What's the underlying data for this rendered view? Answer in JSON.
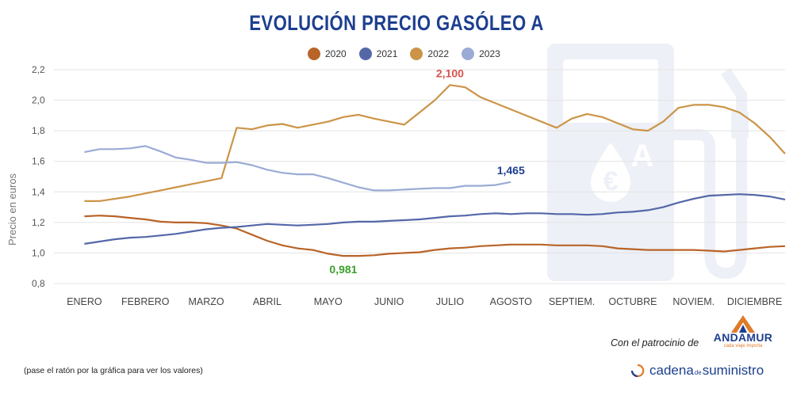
{
  "title": "EVOLUCIÓN PRECIO GASÓLEO A",
  "note": "(pase el ratón por la gráfica para ver los valores)",
  "sponsor": {
    "text": "Con el patrocinio de",
    "brand": "ANDAMUR",
    "tagline": "cada viaje importa"
  },
  "publisher": {
    "part1": "cadena",
    "part2": "de",
    "part3": "suministro"
  },
  "colors": {
    "2020": "#b86428",
    "2021": "#5468a8",
    "2022": "#cc9448",
    "2023": "#9babd5",
    "title": "#1d3f8f",
    "background_icon": "#edf0f6"
  },
  "chart_data": {
    "type": "line",
    "title": "EVOLUCIÓN PRECIO GASÓLEO A",
    "ylabel": "Precio en euros",
    "xlabel": "",
    "ylim": [
      0.8,
      2.2
    ],
    "y_ticks": [
      "0,8",
      "1,0",
      "1,2",
      "1,4",
      "1,6",
      "1,8",
      "2,0",
      "2,2"
    ],
    "x_ticks": [
      "ENERO",
      "FEBRERO",
      "MARZO",
      "ABRIL",
      "MAYO",
      "JUNIO",
      "JULIO",
      "AGOSTO",
      "SEPTIEM.",
      "OCTUBRE",
      "NOVIEM.",
      "DICIEMBRE"
    ],
    "grid": true,
    "legend": "top-center",
    "series": [
      {
        "name": "2020",
        "x": [
          0,
          0.25,
          0.5,
          0.75,
          1,
          1.25,
          1.5,
          1.75,
          2,
          2.25,
          2.5,
          2.75,
          3,
          3.25,
          3.5,
          3.75,
          4,
          4.25,
          4.5,
          4.75,
          5,
          5.25,
          5.5,
          5.75,
          6,
          6.25,
          6.5,
          6.75,
          7,
          7.25,
          7.5,
          7.75,
          8,
          8.25,
          8.5,
          8.75,
          9,
          9.25,
          9.5,
          9.75,
          10,
          10.25,
          10.5,
          10.75,
          11,
          11.25,
          11.5
        ],
        "values": [
          1.24,
          1.245,
          1.24,
          1.23,
          1.22,
          1.205,
          1.2,
          1.2,
          1.195,
          1.18,
          1.16,
          1.12,
          1.08,
          1.05,
          1.03,
          1.02,
          0.995,
          0.981,
          0.981,
          0.985,
          0.995,
          1.0,
          1.005,
          1.02,
          1.03,
          1.035,
          1.045,
          1.05,
          1.055,
          1.055,
          1.055,
          1.05,
          1.05,
          1.05,
          1.045,
          1.03,
          1.025,
          1.02,
          1.02,
          1.02,
          1.02,
          1.015,
          1.01,
          1.02,
          1.03,
          1.04,
          1.045
        ]
      },
      {
        "name": "2021",
        "x": [
          0,
          0.25,
          0.5,
          0.75,
          1,
          1.25,
          1.5,
          1.75,
          2,
          2.25,
          2.5,
          2.75,
          3,
          3.25,
          3.5,
          3.75,
          4,
          4.25,
          4.5,
          4.75,
          5,
          5.25,
          5.5,
          5.75,
          6,
          6.25,
          6.5,
          6.75,
          7,
          7.25,
          7.5,
          7.75,
          8,
          8.25,
          8.5,
          8.75,
          9,
          9.25,
          9.5,
          9.75,
          10,
          10.25,
          10.5,
          10.75,
          11,
          11.25,
          11.5
        ],
        "values": [
          1.06,
          1.075,
          1.09,
          1.1,
          1.105,
          1.115,
          1.125,
          1.14,
          1.155,
          1.165,
          1.17,
          1.18,
          1.19,
          1.185,
          1.18,
          1.185,
          1.19,
          1.2,
          1.205,
          1.205,
          1.21,
          1.215,
          1.22,
          1.23,
          1.24,
          1.245,
          1.255,
          1.26,
          1.255,
          1.26,
          1.26,
          1.255,
          1.255,
          1.25,
          1.255,
          1.265,
          1.27,
          1.28,
          1.3,
          1.33,
          1.355,
          1.375,
          1.38,
          1.385,
          1.38,
          1.37,
          1.35
        ]
      },
      {
        "name": "2022",
        "x": [
          0,
          0.25,
          0.5,
          0.75,
          1,
          1.25,
          1.5,
          1.75,
          2,
          2.25,
          2.5,
          2.75,
          3,
          3.25,
          3.5,
          3.75,
          4,
          4.25,
          4.5,
          4.75,
          5,
          5.25,
          5.5,
          5.75,
          6,
          6.25,
          6.5,
          6.75,
          7,
          7.25,
          7.5,
          7.75,
          8,
          8.25,
          8.5,
          8.75,
          9,
          9.25,
          9.5,
          9.75,
          10,
          10.25,
          10.5,
          10.75,
          11,
          11.25,
          11.5
        ],
        "values": [
          1.34,
          1.34,
          1.355,
          1.37,
          1.39,
          1.41,
          1.43,
          1.45,
          1.47,
          1.49,
          1.82,
          1.81,
          1.835,
          1.845,
          1.82,
          1.84,
          1.86,
          1.89,
          1.905,
          1.88,
          1.86,
          1.84,
          1.92,
          2.0,
          2.1,
          2.085,
          2.02,
          1.98,
          1.94,
          1.9,
          1.86,
          1.82,
          1.88,
          1.91,
          1.89,
          1.85,
          1.81,
          1.8,
          1.86,
          1.95,
          1.97,
          1.97,
          1.955,
          1.92,
          1.85,
          1.76,
          1.65
        ]
      },
      {
        "name": "2023",
        "x": [
          0,
          0.25,
          0.5,
          0.75,
          1,
          1.25,
          1.5,
          1.75,
          2,
          2.25,
          2.5,
          2.75,
          3,
          3.25,
          3.5,
          3.75,
          4,
          4.25,
          4.5,
          4.75,
          5,
          5.25,
          5.5,
          5.75,
          6,
          6.25,
          6.5,
          6.75,
          7
        ],
        "values": [
          1.66,
          1.68,
          1.68,
          1.685,
          1.7,
          1.665,
          1.625,
          1.61,
          1.59,
          1.59,
          1.595,
          1.575,
          1.545,
          1.525,
          1.515,
          1.515,
          1.49,
          1.46,
          1.43,
          1.41,
          1.41,
          1.415,
          1.42,
          1.425,
          1.425,
          1.44,
          1.44,
          1.445,
          1.465
        ]
      }
    ],
    "annotations": [
      {
        "text": "2,100",
        "series": "2022",
        "x": 6,
        "y": 2.1
      },
      {
        "text": "1,465",
        "series": "2023",
        "x": 7,
        "y": 1.465
      },
      {
        "text": "0,981",
        "series": "2020",
        "x": 4.25,
        "y": 0.981
      }
    ]
  }
}
